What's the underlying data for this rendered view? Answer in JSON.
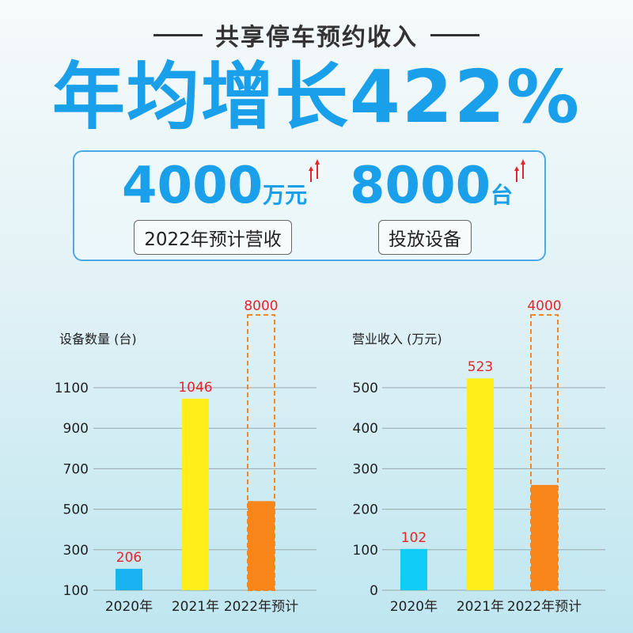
{
  "header": {
    "subtitle": "共享停车预约收入",
    "headline": "年均增长422%"
  },
  "stats": [
    {
      "value": "4000",
      "unit": "万元",
      "label": "2022年预计营收",
      "arrow_color": "#e8242b"
    },
    {
      "value": "8000",
      "unit": "台",
      "label": "投放设备",
      "arrow_color": "#e8242b"
    }
  ],
  "colors": {
    "accent": "#1aa0ea",
    "value_label": "#e8242b",
    "projection_outline": "#f0882a"
  },
  "chart_data": [
    {
      "type": "bar",
      "title": "",
      "ylabel": "设备数量 (台)",
      "xlabel": "",
      "categories": [
        "2020年",
        "2021年",
        "2022年预计"
      ],
      "values": [
        206,
        1046,
        8000
      ],
      "value_labels": [
        "206",
        "1046",
        "8000"
      ],
      "bar_colors": [
        "#1ab2f0",
        "#ffee1a",
        "#f8861b"
      ],
      "projected_index": 2,
      "projected_visible_value": 540,
      "yticks": [
        100,
        300,
        500,
        700,
        900,
        1100
      ],
      "ylim": [
        100,
        1100
      ],
      "grid": true,
      "legend": "none"
    },
    {
      "type": "bar",
      "title": "",
      "ylabel": "营业收入 (万元)",
      "xlabel": "",
      "categories": [
        "2020年",
        "2021年",
        "2022年预计"
      ],
      "values": [
        102,
        523,
        4000
      ],
      "value_labels": [
        "102",
        "523",
        "4000"
      ],
      "bar_colors": [
        "#10ccf6",
        "#ffee1a",
        "#f8861b"
      ],
      "projected_index": 2,
      "projected_visible_value": 260,
      "yticks": [
        0,
        100,
        200,
        300,
        400,
        500
      ],
      "ylim": [
        0,
        500
      ],
      "grid": true,
      "legend": "none"
    }
  ]
}
